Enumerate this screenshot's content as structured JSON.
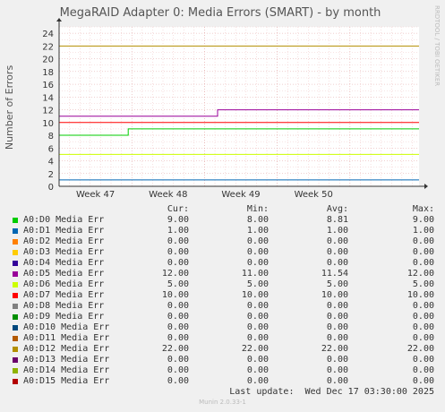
{
  "title": "MegaRAID Adapter 0: Media Errors (SMART) - by month",
  "side_label": "RRDTOOL / TOBI OETIKER",
  "legend_headers": {
    "cur": "Cur:",
    "min": "Min:",
    "avg": "Avg:",
    "max": "Max:"
  },
  "chart_data": {
    "type": "line",
    "ylabel": "Number of Errors",
    "ylim": [
      0,
      25
    ],
    "yticks": [
      0,
      2,
      4,
      6,
      8,
      10,
      12,
      14,
      16,
      18,
      20,
      22,
      24
    ],
    "grid": true,
    "x_ticks": [
      {
        "label": "Week 47",
        "pos": 1
      },
      {
        "label": "Week 48",
        "pos": 2
      },
      {
        "label": "Week 49",
        "pos": 3
      },
      {
        "label": "Week 50",
        "pos": 4
      }
    ],
    "xlim": [
      0,
      4.95
    ],
    "series": [
      {
        "name": "A0:D0 Media Err",
        "color": "#00cc00",
        "cur": "9.00",
        "min": "8.00",
        "avg": "8.81",
        "max": "9.00",
        "points": [
          [
            0,
            8
          ],
          [
            0.95,
            8
          ],
          [
            0.95,
            9
          ],
          [
            4.95,
            9
          ]
        ]
      },
      {
        "name": "A0:D1 Media Err",
        "color": "#0066b3",
        "cur": "1.00",
        "min": "1.00",
        "avg": "1.00",
        "max": "1.00",
        "points": [
          [
            0,
            1
          ],
          [
            4.95,
            1
          ]
        ]
      },
      {
        "name": "A0:D2 Media Err",
        "color": "#ff8000",
        "cur": "0.00",
        "min": "0.00",
        "avg": "0.00",
        "max": "0.00",
        "points": [
          [
            0,
            0
          ],
          [
            4.95,
            0
          ]
        ]
      },
      {
        "name": "A0:D3 Media Err",
        "color": "#ffcc00",
        "cur": "0.00",
        "min": "0.00",
        "avg": "0.00",
        "max": "0.00",
        "points": [
          [
            0,
            0
          ],
          [
            4.95,
            0
          ]
        ]
      },
      {
        "name": "A0:D4 Media Err",
        "color": "#330099",
        "cur": "0.00",
        "min": "0.00",
        "avg": "0.00",
        "max": "0.00",
        "points": [
          [
            0,
            0
          ],
          [
            4.95,
            0
          ]
        ]
      },
      {
        "name": "A0:D5 Media Err",
        "color": "#990099",
        "cur": "12.00",
        "min": "11.00",
        "avg": "11.54",
        "max": "12.00",
        "points": [
          [
            0,
            11
          ],
          [
            2.18,
            11
          ],
          [
            2.18,
            12
          ],
          [
            4.95,
            12
          ]
        ]
      },
      {
        "name": "A0:D6 Media Err",
        "color": "#ccff00",
        "cur": "5.00",
        "min": "5.00",
        "avg": "5.00",
        "max": "5.00",
        "points": [
          [
            0,
            5
          ],
          [
            4.95,
            5
          ]
        ]
      },
      {
        "name": "A0:D7 Media Err",
        "color": "#ff0000",
        "cur": "10.00",
        "min": "10.00",
        "avg": "10.00",
        "max": "10.00",
        "points": [
          [
            0,
            10
          ],
          [
            4.95,
            10
          ]
        ]
      },
      {
        "name": "A0:D8 Media Err",
        "color": "#808080",
        "cur": "0.00",
        "min": "0.00",
        "avg": "0.00",
        "max": "0.00",
        "points": [
          [
            0,
            0
          ],
          [
            4.95,
            0
          ]
        ]
      },
      {
        "name": "A0:D9 Media Err",
        "color": "#008f00",
        "cur": "0.00",
        "min": "0.00",
        "avg": "0.00",
        "max": "0.00",
        "points": [
          [
            0,
            0
          ],
          [
            4.95,
            0
          ]
        ]
      },
      {
        "name": "A0:D10 Media Err",
        "color": "#00487d",
        "cur": "0.00",
        "min": "0.00",
        "avg": "0.00",
        "max": "0.00",
        "points": [
          [
            0,
            0
          ],
          [
            4.95,
            0
          ]
        ]
      },
      {
        "name": "A0:D11 Media Err",
        "color": "#b35a00",
        "cur": "0.00",
        "min": "0.00",
        "avg": "0.00",
        "max": "0.00",
        "points": [
          [
            0,
            0
          ],
          [
            4.95,
            0
          ]
        ]
      },
      {
        "name": "A0:D12 Media Err",
        "color": "#b38f00",
        "cur": "22.00",
        "min": "22.00",
        "avg": "22.00",
        "max": "22.00",
        "points": [
          [
            0,
            22
          ],
          [
            4.95,
            22
          ]
        ]
      },
      {
        "name": "A0:D13 Media Err",
        "color": "#6b006b",
        "cur": "0.00",
        "min": "0.00",
        "avg": "0.00",
        "max": "0.00",
        "points": [
          [
            0,
            0
          ],
          [
            4.95,
            0
          ]
        ]
      },
      {
        "name": "A0:D14 Media Err",
        "color": "#8fb300",
        "cur": "0.00",
        "min": "0.00",
        "avg": "0.00",
        "max": "0.00",
        "points": [
          [
            0,
            0
          ],
          [
            4.95,
            0
          ]
        ]
      },
      {
        "name": "A0:D15 Media Err",
        "color": "#b30000",
        "cur": "0.00",
        "min": "0.00",
        "avg": "0.00",
        "max": "0.00",
        "points": [
          [
            0,
            0
          ],
          [
            4.95,
            0
          ]
        ]
      }
    ]
  },
  "last_update": "Last update:  Wed Dec 17 03:30:00 2025",
  "munin_version": "Munin 2.0.33-1"
}
